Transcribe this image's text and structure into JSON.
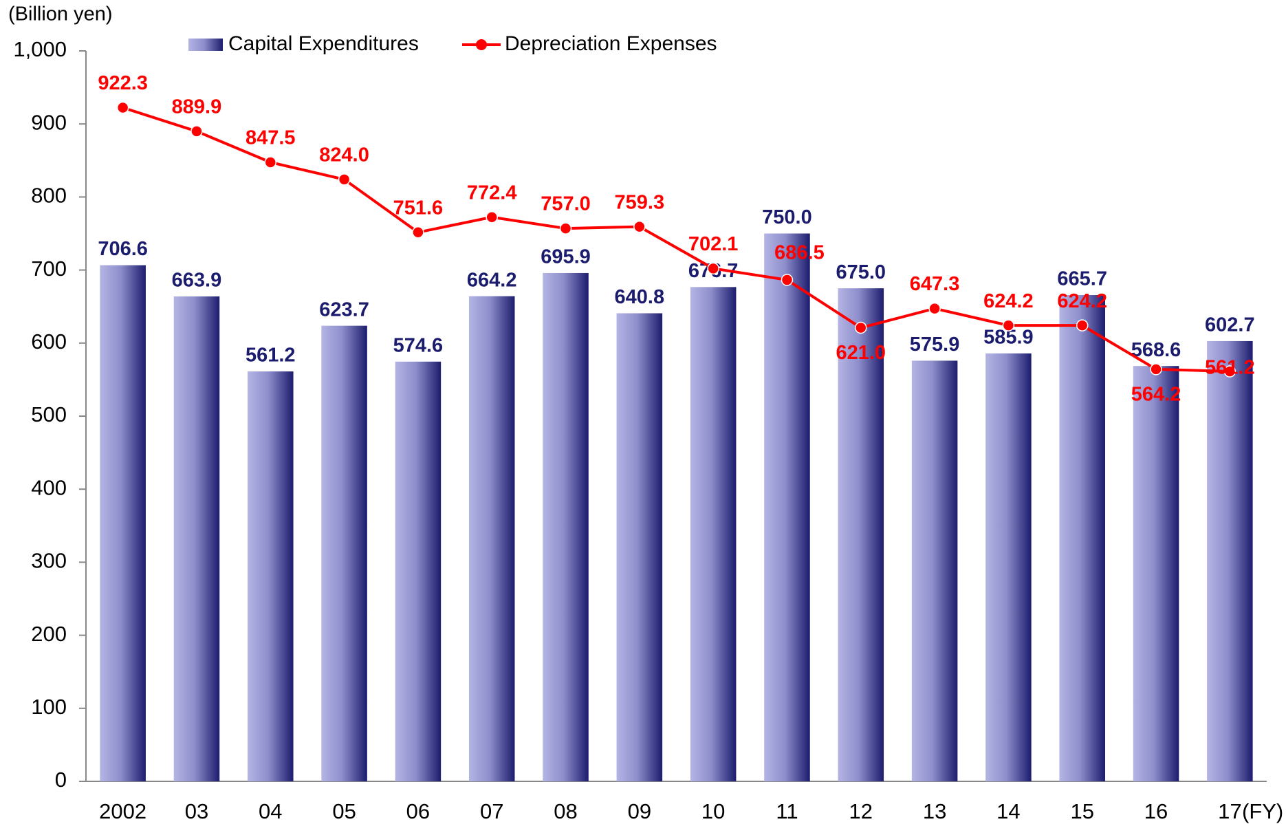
{
  "chart_data": {
    "type": "bar_line",
    "y_label": "(Billion yen)",
    "x_label": "(FY)",
    "categories": [
      "2002",
      "03",
      "04",
      "05",
      "06",
      "07",
      "08",
      "09",
      "10",
      "11",
      "12",
      "13",
      "14",
      "15",
      "16",
      "17"
    ],
    "series": [
      {
        "name": "Capital Expenditures",
        "type": "bar",
        "color": "#1c1c6e",
        "values": [
          706.6,
          663.9,
          561.2,
          623.7,
          574.6,
          664.2,
          695.9,
          640.8,
          676.7,
          750.0,
          675.0,
          575.9,
          585.9,
          665.7,
          568.6,
          602.7
        ],
        "value_labels": [
          "706.6",
          "663.9",
          "561.2",
          "623.7",
          "574.6",
          "664.2",
          "695.9",
          "640.8",
          "676.7",
          "750.0",
          "675.0",
          "575.9",
          "585.9",
          "665.7",
          "568.6",
          "602.7"
        ]
      },
      {
        "name": "Depreciation Expenses",
        "type": "line",
        "color": "#ff0000",
        "values": [
          922.3,
          889.9,
          847.5,
          824.0,
          751.6,
          772.4,
          757.0,
          759.3,
          702.1,
          686.5,
          621.0,
          647.3,
          624.2,
          624.2,
          564.2,
          561.2
        ],
        "value_labels": [
          "922.3",
          "889.9",
          "847.5",
          "824.0",
          "751.6",
          "772.4",
          "757.0",
          "759.3",
          "702.1",
          "686.5",
          "621.0",
          "647.3",
          "624.2",
          "624.2",
          "564.2",
          "561.2"
        ]
      }
    ],
    "ylim": [
      0,
      1000
    ],
    "yticks": [
      0,
      100,
      200,
      300,
      400,
      500,
      600,
      700,
      800,
      900,
      {
        "value": 1000,
        "label": "1,000"
      }
    ],
    "grid": false
  }
}
